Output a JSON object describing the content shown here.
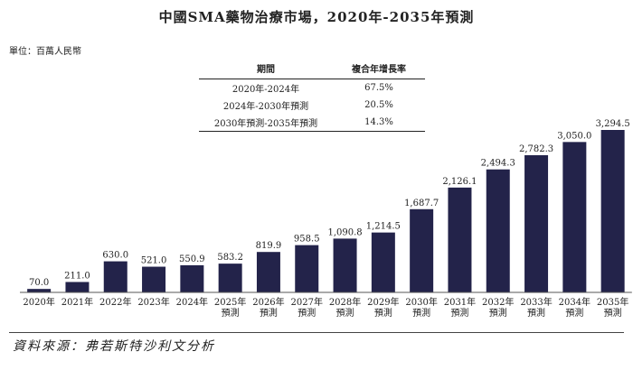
{
  "title": "中國SMA藥物治療市場，2020年-2035年預測",
  "unit_label": "單位：百萬人民幣",
  "table": {
    "headers": [
      "期間",
      "複合年增長率"
    ],
    "rows": [
      [
        "2020年-2024年",
        "67.5%"
      ],
      [
        "2024年-2030年預測",
        "20.5%"
      ],
      [
        "2030年預測-2035年預測",
        "14.3%"
      ]
    ]
  },
  "source": "資料來源：弗若斯特沙利文分析",
  "colors": {
    "bar": "#23234a",
    "axis": "#555555"
  },
  "chart_data": {
    "type": "bar",
    "title": "中國SMA藥物治療市場，2020年-2035年預測",
    "ylabel": "單位：百萬人民幣",
    "ylim": [
      0,
      3294.5
    ],
    "categories": [
      [
        "2020年"
      ],
      [
        "2021年"
      ],
      [
        "2022年"
      ],
      [
        "2023年"
      ],
      [
        "2024年"
      ],
      [
        "2025年",
        "預測"
      ],
      [
        "2026年",
        "預測"
      ],
      [
        "2027年",
        "預測"
      ],
      [
        "2028年",
        "預測"
      ],
      [
        "2029年",
        "預測"
      ],
      [
        "2030年",
        "預測"
      ],
      [
        "2031年",
        "預測"
      ],
      [
        "2032年",
        "預測"
      ],
      [
        "2033年",
        "預測"
      ],
      [
        "2034年",
        "預測"
      ],
      [
        "2035年",
        "預測"
      ]
    ],
    "values": [
      70.0,
      211.0,
      630.0,
      521.0,
      550.9,
      583.2,
      819.9,
      958.5,
      1090.8,
      1214.5,
      1687.7,
      2126.1,
      2494.3,
      2782.3,
      3050.0,
      3294.5
    ],
    "value_labels": [
      "70.0",
      "211.0",
      "630.0",
      "521.0",
      "550.9",
      "583.2",
      "819.9",
      "958.5",
      "1,090.8",
      "1,214.5",
      "1,687.7",
      "2,126.1",
      "2,494.3",
      "2,782.3",
      "3,050.0",
      "3,294.5"
    ]
  }
}
